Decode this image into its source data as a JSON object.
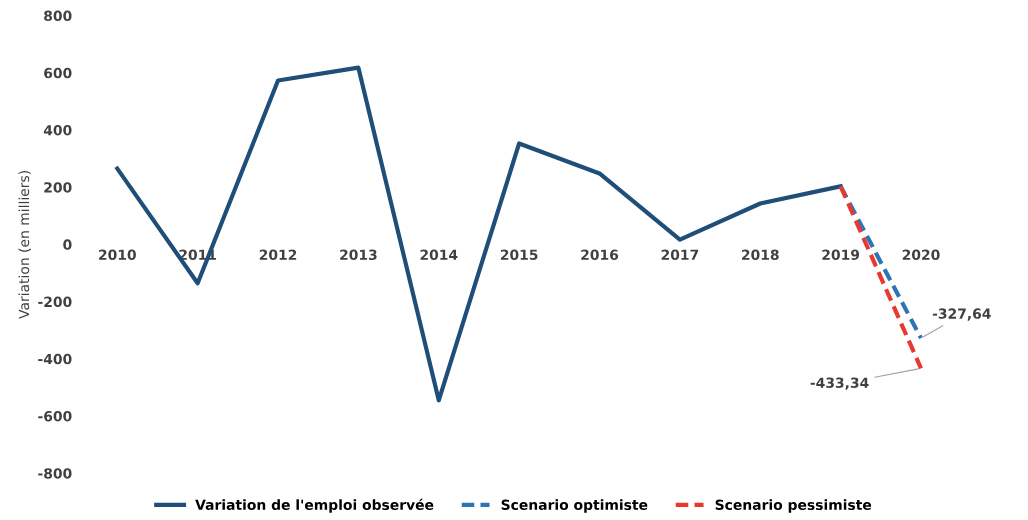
{
  "chart_data": {
    "type": "line",
    "ylabel": "Variation (en milliers)",
    "categories": [
      "2010",
      "2011",
      "2012",
      "2013",
      "2014",
      "2015",
      "2016",
      "2017",
      "2018",
      "2019",
      "2020"
    ],
    "series": [
      {
        "name": "Variation de l'emploi observée",
        "color": "#1f4e79",
        "line_style": "solid",
        "values": [
          265,
          -136,
          573,
          618,
          -545,
          353,
          248,
          17,
          143,
          203,
          null
        ]
      },
      {
        "name": "Scenario optimiste",
        "color": "#2e75b6",
        "line_style": "dashed",
        "values": [
          null,
          null,
          null,
          null,
          null,
          null,
          null,
          null,
          null,
          203,
          -327.64
        ]
      },
      {
        "name": "Scenario pessimiste",
        "color": "#e8382f",
        "line_style": "dashed",
        "values": [
          null,
          null,
          null,
          null,
          null,
          null,
          null,
          null,
          null,
          203,
          -433.34
        ]
      }
    ],
    "annotations": [
      {
        "text": "-327,64",
        "x": "2020",
        "y": -327.64
      },
      {
        "text": "-433,34",
        "x": "2020",
        "y": -433.34
      }
    ],
    "ylim": [
      -800,
      800
    ],
    "yticks": [
      -800,
      -600,
      -400,
      -200,
      0,
      200,
      400,
      600,
      800
    ],
    "grid": false,
    "legend": "bottom",
    "marker": "none"
  }
}
